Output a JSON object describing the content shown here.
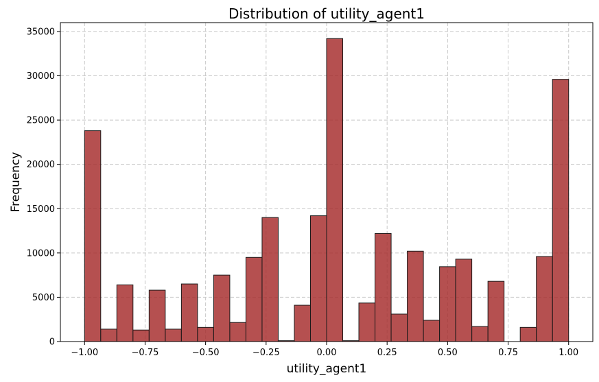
{
  "chart_data": {
    "type": "bar",
    "subtype": "histogram",
    "title": "Distribution of utility_agent1",
    "xlabel": "utility_agent1",
    "ylabel": "Frequency",
    "xlim": [
      -1.1,
      1.1
    ],
    "ylim": [
      0,
      36000
    ],
    "xticks": [
      -1.0,
      -0.75,
      -0.5,
      -0.25,
      0.0,
      0.25,
      0.5,
      0.75,
      1.0
    ],
    "xtick_labels": [
      "−1.00",
      "−0.75",
      "−0.50",
      "−0.25",
      "0.00",
      "0.25",
      "0.50",
      "0.75",
      "1.00"
    ],
    "yticks": [
      0,
      5000,
      10000,
      15000,
      20000,
      25000,
      30000,
      35000
    ],
    "ytick_labels": [
      "0",
      "5000",
      "10000",
      "15000",
      "20000",
      "25000",
      "30000",
      "35000"
    ],
    "grid": true,
    "bar_color": "#a52a2a",
    "bin_range": [
      -1.0,
      1.0
    ],
    "bins": 30,
    "values": [
      23800,
      1400,
      6400,
      1300,
      5800,
      1400,
      6500,
      1600,
      7500,
      2150,
      9500,
      14000,
      100,
      4100,
      14200,
      34200,
      100,
      4350,
      12200,
      3100,
      10200,
      2400,
      8450,
      9300,
      1700,
      6800,
      0,
      1600,
      9600,
      29600
    ]
  }
}
